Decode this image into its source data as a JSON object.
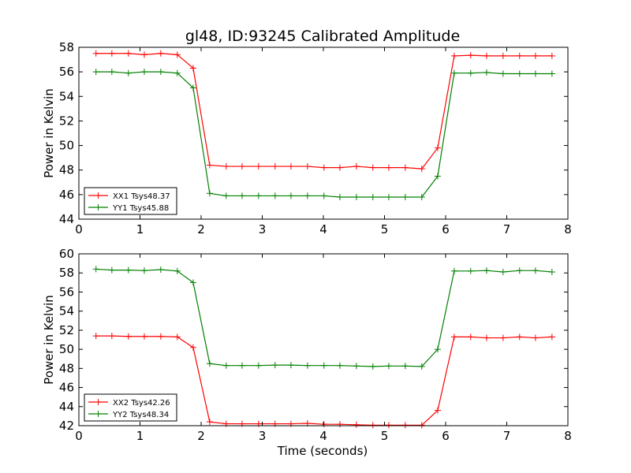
{
  "title": "gl48, ID:93245 Calibrated Amplitude",
  "xlabel": "Time (seconds)",
  "colors": {
    "red": "#ff0000",
    "green": "#008000"
  },
  "chart_data": [
    {
      "type": "line",
      "ylabel": "Power in Kelvin",
      "xlim": [
        0,
        8
      ],
      "ylim": [
        44,
        58
      ],
      "xticks": [
        0,
        1,
        2,
        3,
        4,
        5,
        6,
        7,
        8
      ],
      "yticks": [
        44,
        46,
        48,
        50,
        52,
        54,
        56,
        58
      ],
      "legend": "lower-left",
      "x": [
        0.28,
        0.54,
        0.81,
        1.07,
        1.34,
        1.61,
        1.87,
        2.14,
        2.41,
        2.67,
        2.94,
        3.21,
        3.47,
        3.74,
        4.01,
        4.27,
        4.54,
        4.81,
        5.07,
        5.34,
        5.61,
        5.87,
        6.14,
        6.41,
        6.67,
        6.94,
        7.21,
        7.47,
        7.74
      ],
      "series": [
        {
          "name": "XX1 Tsys48.37",
          "color": "#ff0000",
          "values": [
            57.5,
            57.5,
            57.5,
            57.4,
            57.5,
            57.4,
            56.3,
            48.4,
            48.3,
            48.3,
            48.3,
            48.3,
            48.3,
            48.3,
            48.2,
            48.2,
            48.3,
            48.2,
            48.2,
            48.2,
            48.1,
            49.8,
            57.3,
            57.35,
            57.3,
            57.3,
            57.3,
            57.3,
            57.3
          ]
        },
        {
          "name": "YY1 Tsys45.88",
          "color": "#008000",
          "values": [
            56.0,
            56.0,
            55.9,
            56.0,
            56.0,
            55.9,
            54.7,
            46.1,
            45.9,
            45.9,
            45.9,
            45.9,
            45.9,
            45.9,
            45.9,
            45.8,
            45.8,
            45.8,
            45.8,
            45.8,
            45.8,
            47.5,
            55.9,
            55.9,
            55.95,
            55.85,
            55.85,
            55.85,
            55.85
          ]
        }
      ]
    },
    {
      "type": "line",
      "ylabel": "Power in Kelvin",
      "xlabel": "Time (seconds)",
      "xlim": [
        0,
        8
      ],
      "ylim": [
        42,
        60
      ],
      "xticks": [
        0,
        1,
        2,
        3,
        4,
        5,
        6,
        7,
        8
      ],
      "yticks": [
        42,
        44,
        46,
        48,
        50,
        52,
        54,
        56,
        58,
        60
      ],
      "legend": "lower-left",
      "x": [
        0.28,
        0.54,
        0.81,
        1.07,
        1.34,
        1.61,
        1.87,
        2.14,
        2.41,
        2.67,
        2.94,
        3.21,
        3.47,
        3.74,
        4.01,
        4.27,
        4.54,
        4.81,
        5.07,
        5.34,
        5.61,
        5.87,
        6.14,
        6.41,
        6.67,
        6.94,
        7.21,
        7.47,
        7.74
      ],
      "series": [
        {
          "name": "XX2 Tsys42.26",
          "color": "#ff0000",
          "values": [
            51.4,
            51.4,
            51.35,
            51.35,
            51.35,
            51.3,
            50.2,
            42.4,
            42.2,
            42.2,
            42.2,
            42.2,
            42.2,
            42.25,
            42.15,
            42.15,
            42.1,
            42.05,
            42.05,
            42.05,
            42.05,
            43.6,
            51.3,
            51.3,
            51.2,
            51.2,
            51.3,
            51.2,
            51.3
          ]
        },
        {
          "name": "YY2 Tsys48.34",
          "color": "#008000",
          "values": [
            58.4,
            58.3,
            58.3,
            58.25,
            58.35,
            58.2,
            57.0,
            48.5,
            48.3,
            48.3,
            48.3,
            48.35,
            48.35,
            48.3,
            48.3,
            48.3,
            48.25,
            48.2,
            48.25,
            48.25,
            48.2,
            50.0,
            58.2,
            58.2,
            58.25,
            58.1,
            58.25,
            58.25,
            58.1
          ]
        }
      ]
    }
  ]
}
